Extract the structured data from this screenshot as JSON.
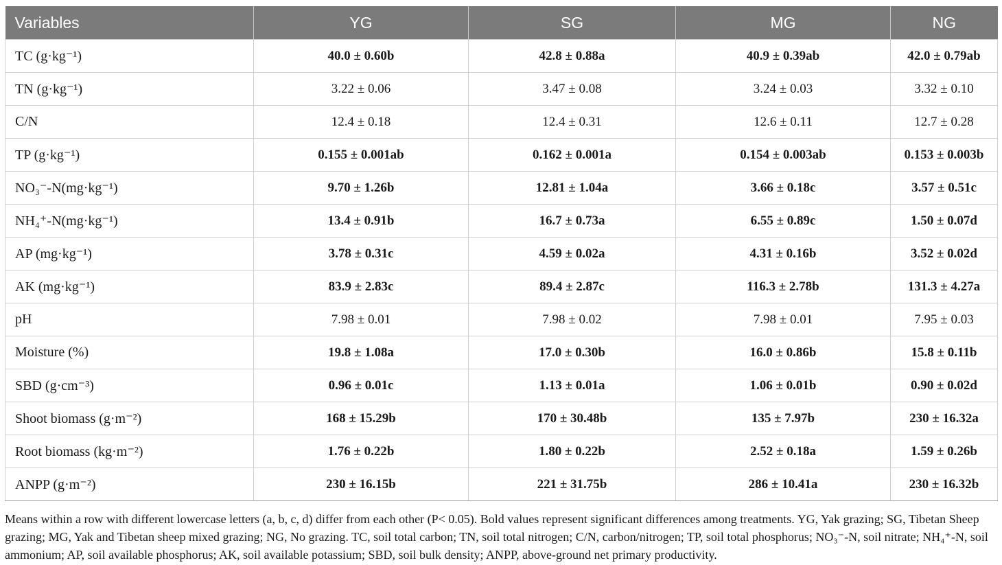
{
  "columns": [
    "Variables",
    "YG",
    "SG",
    "MG",
    "NG"
  ],
  "rows": [
    {
      "label": "TC (g·kg⁻¹)",
      "significant": true,
      "values": [
        "40.0 ± 0.60b",
        "42.8 ± 0.88a",
        "40.9 ± 0.39ab",
        "42.0 ± 0.79ab"
      ]
    },
    {
      "label": "TN (g·kg⁻¹)",
      "significant": false,
      "values": [
        "3.22 ± 0.06",
        "3.47 ± 0.08",
        "3.24 ± 0.03",
        "3.32 ± 0.10"
      ]
    },
    {
      "label": "C/N",
      "significant": false,
      "values": [
        "12.4 ± 0.18",
        "12.4 ± 0.31",
        "12.6 ± 0.11",
        "12.7 ± 0.28"
      ]
    },
    {
      "label": "TP (g·kg⁻¹)",
      "significant": true,
      "values": [
        "0.155 ± 0.001ab",
        "0.162 ± 0.001a",
        "0.154 ± 0.003ab",
        "0.153 ± 0.003b"
      ]
    },
    {
      "label": "NO₃⁻-N(mg·kg⁻¹)",
      "significant": true,
      "values": [
        "9.70 ± 1.26b",
        "12.81 ± 1.04a",
        "3.66 ± 0.18c",
        "3.57 ± 0.51c"
      ]
    },
    {
      "label": "NH₄⁺-N(mg·kg⁻¹)",
      "significant": true,
      "values": [
        "13.4 ± 0.91b",
        "16.7 ± 0.73a",
        "6.55 ± 0.89c",
        "1.50 ± 0.07d"
      ]
    },
    {
      "label": "AP (mg·kg⁻¹)",
      "significant": true,
      "values": [
        "3.78 ± 0.31c",
        "4.59 ± 0.02a",
        "4.31 ± 0.16b",
        "3.52 ± 0.02d"
      ]
    },
    {
      "label": "AK (mg·kg⁻¹)",
      "significant": true,
      "values": [
        "83.9 ± 2.83c",
        "89.4 ± 2.87c",
        "116.3 ± 2.78b",
        "131.3 ± 4.27a"
      ]
    },
    {
      "label": "pH",
      "significant": false,
      "values": [
        "7.98 ± 0.01",
        "7.98 ± 0.02",
        "7.98 ± 0.01",
        "7.95 ± 0.03"
      ]
    },
    {
      "label": "Moisture (%)",
      "significant": true,
      "values": [
        "19.8 ± 1.08a",
        "17.0 ± 0.30b",
        "16.0 ± 0.86b",
        "15.8 ± 0.11b"
      ]
    },
    {
      "label": "SBD (g·cm⁻³)",
      "significant": true,
      "values": [
        "0.96 ± 0.01c",
        "1.13 ± 0.01a",
        "1.06 ± 0.01b",
        "0.90 ± 0.02d"
      ]
    },
    {
      "label": "Shoot biomass (g·m⁻²)",
      "significant": true,
      "values": [
        "168 ± 15.29b",
        "170 ± 30.48b",
        "135 ± 7.97b",
        "230 ± 16.32a"
      ]
    },
    {
      "label": "Root biomass (kg·m⁻²)",
      "significant": true,
      "values": [
        "1.76 ± 0.22b",
        "1.80 ± 0.22b",
        "2.52 ± 0.18a",
        "1.59 ± 0.26b"
      ]
    },
    {
      "label": "ANPP (g·m⁻²)",
      "significant": true,
      "values": [
        "230 ± 16.15b",
        "221 ± 31.75b",
        "286 ± 10.41a",
        "230 ± 16.32b"
      ]
    }
  ],
  "footnote": "Means within a row with different lowercase letters (a, b, c, d) differ from each other (P< 0.05). Bold values represent significant differences among treatments. YG, Yak grazing; SG, Tibetan Sheep grazing; MG, Yak and Tibetan sheep mixed grazing; NG, No grazing. TC, soil total carbon; TN, soil total nitrogen; C/N, carbon/nitrogen; TP, soil total phosphorus; NO₃⁻-N, soil nitrate; NH₄⁺-N, soil ammonium; AP, soil available phosphorus; AK, soil available potassium; SBD, soil bulk density; ANPP, above-ground net primary productivity."
}
